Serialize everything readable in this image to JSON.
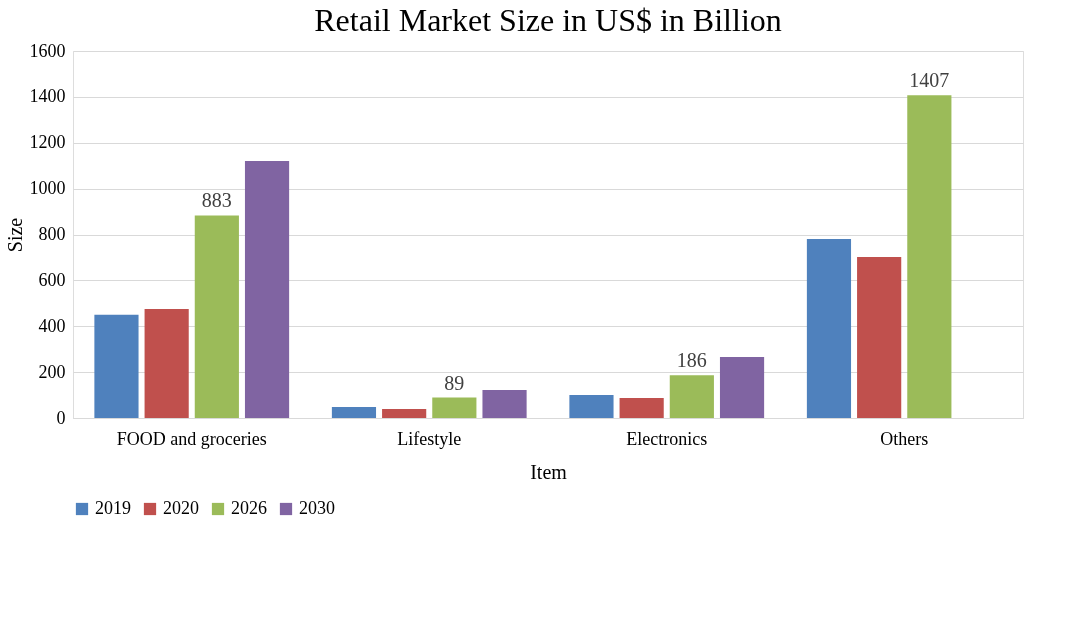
{
  "chart_data": {
    "type": "bar",
    "title": "Retail Market Size in US$ in Billion",
    "xlabel": "Item",
    "ylabel": "Size",
    "categories": [
      "FOOD and groceries",
      "Lifestyle",
      "Electronics",
      "Others"
    ],
    "series": [
      {
        "name": "2019",
        "color": "#4f81bd",
        "values": [
          450,
          48,
          100,
          780
        ]
      },
      {
        "name": "2020",
        "color": "#c0504d",
        "values": [
          475,
          39,
          87,
          702
        ]
      },
      {
        "name": "2026",
        "color": "#9bbb59",
        "values": [
          883,
          89,
          186,
          1407
        ],
        "value_labels": [
          "883",
          "89",
          "186",
          "1407"
        ]
      },
      {
        "name": "2030",
        "color": "#8064a2",
        "values": [
          1120,
          122,
          266,
          null
        ]
      }
    ],
    "ylim": [
      0,
      1600
    ],
    "yticks": [
      0,
      200,
      400,
      600,
      800,
      1000,
      1200,
      1400,
      1600
    ],
    "grid": "y",
    "legend": "bottom"
  }
}
